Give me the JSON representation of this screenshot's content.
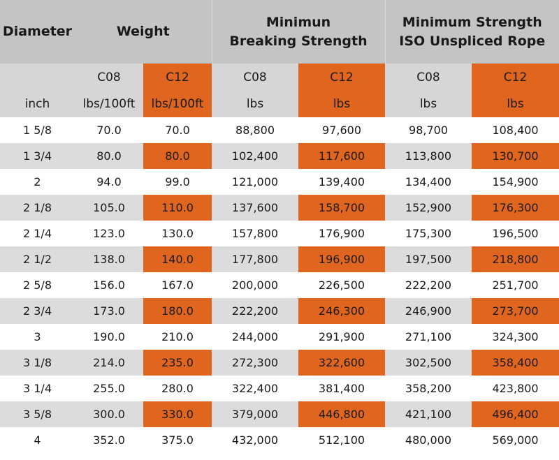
{
  "header": {
    "diameter": "Diameter",
    "weight": "Weight",
    "mbs_line1": "Minimun",
    "mbs_line2": "Breaking Strength",
    "iso_line1": "Minimum Strength",
    "iso_line2": "ISO Unspliced Rope"
  },
  "grades": [
    "C08",
    "C12",
    "C08",
    "C12",
    "C08",
    "C12"
  ],
  "units": [
    "inch",
    "lbs/100ft",
    "lbs/100ft",
    "lbs",
    "lbs",
    "lbs",
    "lbs"
  ],
  "accent_color": "#e0651f",
  "rows": [
    [
      "1 5/8",
      "70.0",
      "70.0",
      "88,800",
      "97,600",
      "98,700",
      "108,400"
    ],
    [
      "1 3/4",
      "80.0",
      "80.0",
      "102,400",
      "117,600",
      "113,800",
      "130,700"
    ],
    [
      "2",
      "94.0",
      "99.0",
      "121,000",
      "139,400",
      "134,400",
      "154,900"
    ],
    [
      "2 1/8",
      "105.0",
      "110.0",
      "137,600",
      "158,700",
      "152,900",
      "176,300"
    ],
    [
      "2 1/4",
      "123.0",
      "130.0",
      "157,800",
      "176,900",
      "175,300",
      "196,500"
    ],
    [
      "2 1/2",
      "138.0",
      "140.0",
      "177,800",
      "196,900",
      "197,500",
      "218,800"
    ],
    [
      "2 5/8",
      "156.0",
      "167.0",
      "200,000",
      "226,500",
      "222,200",
      "251,700"
    ],
    [
      "2 3/4",
      "173.0",
      "180.0",
      "222,200",
      "246,300",
      "246,900",
      "273,700"
    ],
    [
      "3",
      "190.0",
      "210.0",
      "244,000",
      "291,900",
      "271,100",
      "324,300"
    ],
    [
      "3 1/8",
      "214.0",
      "235.0",
      "272,300",
      "322,600",
      "302,500",
      "358,400"
    ],
    [
      "3 1/4",
      "255.0",
      "280.0",
      "322,400",
      "381,400",
      "358,200",
      "423,800"
    ],
    [
      "3 5/8",
      "300.0",
      "330.0",
      "379,000",
      "446,800",
      "421,100",
      "496,400"
    ],
    [
      "4",
      "352.0",
      "375.0",
      "432,000",
      "512,100",
      "480,000",
      "569,000"
    ]
  ]
}
